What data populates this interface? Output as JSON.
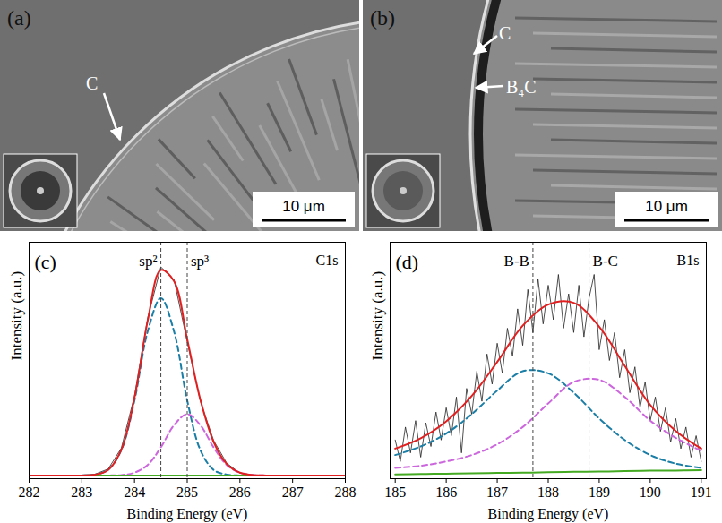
{
  "images": [
    {
      "panel_label": "(a)",
      "labels": [
        "C"
      ],
      "scale_bar": "10 μm"
    },
    {
      "panel_label": "(b)",
      "labels": [
        "C",
        "B₄C"
      ],
      "scale_bar": "10 μm"
    }
  ],
  "chart_data": [
    {
      "type": "line",
      "panel_label": "(c)",
      "title": "C1s",
      "x_label": "Binding Energy (eV)",
      "y_label": "Intensity (a.u.)",
      "xlim": [
        282,
        288
      ],
      "xticks": [
        282,
        283,
        284,
        285,
        286,
        287,
        288
      ],
      "ylim": [
        0,
        110
      ],
      "tick_labels": "x",
      "annotations": [
        {
          "x": 284.5,
          "text": "sp²"
        },
        {
          "x": 285.0,
          "text": "sp³"
        }
      ],
      "series": [
        {
          "color": "#222222",
          "line_style": "solid",
          "x": [
            282,
            282.25,
            282.5,
            282.75,
            283,
            283.25,
            283.5,
            283.75,
            284,
            284.25,
            284.5,
            284.75,
            285,
            285.25,
            285.5,
            285.75,
            286,
            286.25,
            286.5,
            286.75,
            287,
            287.25,
            287.5,
            287.75,
            288
          ],
          "values": [
            1.4,
            1.6,
            1.5,
            1.4,
            1.6,
            2.1,
            4.5,
            14.2,
            38.5,
            74.8,
            98.5,
            92.6,
            63.8,
            36.0,
            17.8,
            7.2,
            2.6,
            1.8,
            1.5,
            1.4,
            1.6,
            1.5,
            1.4,
            1.6,
            1.5
          ]
        },
        {
          "color": "#1b7ea6",
          "line_style": "dashed",
          "x": [
            282,
            282.25,
            282.5,
            282.75,
            283,
            283.25,
            283.5,
            283.75,
            284,
            284.25,
            284.5,
            284.75,
            285,
            285.25,
            285.5,
            285.75,
            286,
            286.25,
            286.5,
            286.75,
            287,
            287.25,
            287.5,
            287.75,
            288
          ],
          "values": [
            1.5,
            1.5,
            1.5,
            1.5,
            1.5,
            1.9,
            4.1,
            13.3,
            36.4,
            68.5,
            84,
            68.5,
            36.4,
            13.3,
            4.1,
            1.9,
            1.5,
            1.5,
            1.5,
            1.5,
            1.5,
            1.5,
            1.5,
            1.5,
            1.5
          ]
        },
        {
          "color": "#cc66dd",
          "line_style": "dashed",
          "x": [
            282,
            282.25,
            282.5,
            282.75,
            283,
            283.25,
            283.5,
            283.75,
            284,
            284.25,
            284.5,
            284.75,
            285,
            285.25,
            285.5,
            285.75,
            286,
            286.25,
            286.5,
            286.75,
            287,
            287.25,
            287.5,
            287.75,
            288
          ],
          "values": [
            1.5,
            1.5,
            1.5,
            1.5,
            1.5,
            1.5,
            1.5,
            1.7,
            2.8,
            6.4,
            14.6,
            24.9,
            30,
            24.9,
            14.6,
            6.4,
            2.8,
            1.7,
            1.5,
            1.5,
            1.5,
            1.5,
            1.5,
            1.5,
            1.5
          ]
        },
        {
          "color": "#44aa22",
          "line_style": "solid",
          "x": [
            282,
            288
          ],
          "values": [
            1.5,
            1.5
          ]
        },
        {
          "color": "#e02020",
          "line_style": "solid",
          "x": [
            282,
            282.25,
            282.5,
            282.75,
            283,
            283.25,
            283.5,
            283.75,
            284,
            284.25,
            284.5,
            284.75,
            285,
            285.25,
            285.5,
            285.75,
            286,
            286.25,
            286.5,
            286.75,
            287,
            287.25,
            287.5,
            287.75,
            288
          ],
          "values": [
            1.5,
            1.5,
            1.5,
            1.5,
            1.5,
            1.9,
            4.1,
            13.5,
            37.7,
            73.4,
            97.1,
            91.9,
            64.9,
            36.7,
            17.2,
            6.8,
            2.8,
            1.7,
            1.5,
            1.5,
            1.5,
            1.5,
            1.5,
            1.5,
            1.5
          ]
        }
      ]
    },
    {
      "type": "line",
      "panel_label": "(d)",
      "title": "B1s",
      "x_label": "Binding Energy (eV)",
      "y_label": "Intensity (a.u.)",
      "xlim": [
        184.9,
        191.1
      ],
      "xticks": [
        185,
        186,
        187,
        188,
        189,
        190,
        191
      ],
      "ylim": [
        0,
        110
      ],
      "tick_labels": "x",
      "annotations": [
        {
          "x": 187.7,
          "text": "B-B"
        },
        {
          "x": 188.8,
          "text": "B-C"
        }
      ],
      "series": [
        {
          "color": "#222222",
          "line_style": "solid",
          "x": [
            185,
            185.1,
            185.2,
            185.3,
            185.4,
            185.5,
            185.6,
            185.7,
            185.8,
            185.9,
            186,
            186.1,
            186.2,
            186.3,
            186.4,
            186.5,
            186.6,
            186.7,
            186.8,
            186.9,
            187,
            187.1,
            187.2,
            187.3,
            187.4,
            187.5,
            187.6,
            187.7,
            187.8,
            187.9,
            188,
            188.1,
            188.2,
            188.3,
            188.4,
            188.5,
            188.6,
            188.7,
            188.8,
            188.9,
            189,
            189.1,
            189.2,
            189.3,
            189.4,
            189.5,
            189.6,
            189.7,
            189.8,
            189.9,
            190,
            190.1,
            190.2,
            190.3,
            190.4,
            190.5,
            190.6,
            190.7,
            190.8,
            190.9,
            191
          ],
          "values": [
            18,
            8,
            24,
            12,
            27,
            10,
            26,
            15,
            31,
            18,
            33,
            20,
            38,
            12,
            42,
            30,
            50,
            36,
            58,
            44,
            63,
            49,
            70,
            57,
            79,
            62,
            88,
            68,
            93,
            72,
            90,
            74,
            95,
            70,
            86,
            68,
            90,
            66,
            84,
            95,
            60,
            74,
            55,
            68,
            47,
            60,
            40,
            52,
            33,
            45,
            27,
            38,
            22,
            33,
            17,
            28,
            14,
            24,
            10,
            20,
            8
          ]
        },
        {
          "color": "#1b7ea6",
          "line_style": "dashed",
          "x": [
            185,
            185.5,
            186,
            186.5,
            187,
            187.5,
            188,
            188.5,
            189,
            189.5,
            190,
            190.5,
            191
          ],
          "values": [
            11,
            15,
            21,
            30,
            41,
            50,
            49,
            40,
            28,
            18,
            11,
            7,
            5
          ]
        },
        {
          "color": "#cc66dd",
          "line_style": "dashed",
          "x": [
            185,
            185.5,
            186,
            186.5,
            187,
            187.5,
            188,
            188.5,
            189,
            189.5,
            190,
            190.5,
            191
          ],
          "values": [
            5,
            6,
            8,
            11,
            16,
            24,
            35,
            45,
            46,
            38,
            27,
            19,
            13
          ]
        },
        {
          "color": "#44aa22",
          "line_style": "solid",
          "x": [
            185,
            185.5,
            186,
            186.5,
            187,
            187.5,
            188,
            188.5,
            189,
            189.5,
            190,
            190.5,
            191
          ],
          "values": [
            2.0,
            2.2,
            2.3,
            2.5,
            2.7,
            2.8,
            3.0,
            3.2,
            3.3,
            3.5,
            3.7,
            3.8,
            4.0
          ]
        },
        {
          "color": "#e02020",
          "line_style": "solid",
          "x": [
            185,
            185.5,
            186,
            186.5,
            187,
            187.5,
            188,
            188.5,
            189,
            189.5,
            190,
            190.5,
            191
          ],
          "values": [
            14,
            18.8,
            26.7,
            38.5,
            54.3,
            71.2,
            81,
            81.8,
            70.7,
            52.5,
            34.3,
            22.2,
            14
          ]
        }
      ]
    }
  ]
}
